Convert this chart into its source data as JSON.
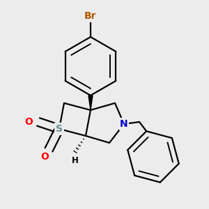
{
  "background_color": "#ececec",
  "bond_color": "#000000",
  "bond_width": 1.6,
  "dbo": 0.018,
  "atom_colors": {
    "Br": "#b35a00",
    "S": "#6b8e8e",
    "N": "#0000cc",
    "O": "#ff0000",
    "H": "#000000",
    "C": "#000000"
  },
  "font_size": 10,
  "font_size_small": 8.5
}
